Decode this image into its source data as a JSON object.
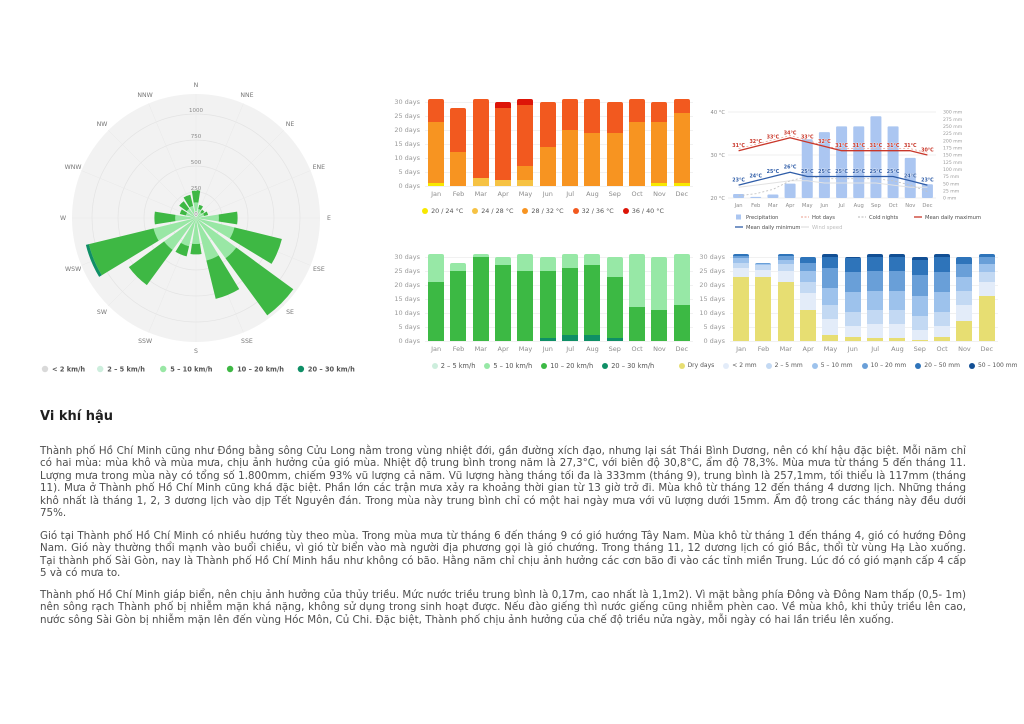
{
  "page": {
    "heading": "Vi khí hậu",
    "paragraphs": {
      "p1": "Thành phố Hồ Chí Minh cũng như Đồng bằng sông Cửu Long nằm trong vùng nhiệt đới, gần đường xích đạo, nhưng lại sát Thái Bình Dương, nên có khí hậu đặc biệt. Mỗi năm chỉ có hai mùa: mùa khô và mùa mưa, chịu ảnh hưởng của gió mùa. Nhiệt độ trung bình trong năm là 27,3°C, với biên độ 30,8°C, ẩm độ 78,3%. Mùa mưa từ tháng 5 đến tháng 11. Lượng mưa trong mùa này có tổng số 1.800mm, chiếm 93% vũ lượng cả năm. Vũ lượng hàng tháng tối đa là 333mm (tháng 9), trung bình là 257,1mm, tối thiểu là 117mm (tháng 11). Mưa ở Thành phố Hồ Chí Minh cũng khá đặc biệt. Phần lớn các trận mưa xảy ra khoảng thời gian từ 13 giờ trở đi. Mùa khô từ tháng 12 đến tháng 4 dương lịch. Những tháng khô nhất là tháng 1, 2, 3 dương lịch vào dịp Tết Nguyên đán. Trong mùa này trung bình chỉ có một hai ngày mưa với vũ lượng dưới 15mm. Ẩm độ trong các tháng này đều dưới 75%.",
      "p2": "Gió tại Thành phố Hồ Chí Minh có nhiều hướng tùy theo mùa. Trong mùa mưa từ tháng 6 đến tháng 9 có gió hướng Tây Nam. Mùa khô từ tháng 1 đến tháng 4, gió có hướng Đông Nam. Gió này thường thổi mạnh vào buổi chiều, vì gió từ biển vào mà người địa phương gọi là gió chướng. Trong tháng 11, 12 dương lịch có gió Bắc, thổi từ vùng Hạ Lào xuống. Tại thành phố Sài Gòn, nay là Thành phố Hồ Chí Minh hầu như không có bão. Hằng năm chỉ chịu ảnh hưởng các cơn bão đi vào các tỉnh miền Trung. Lúc đó có gió mạnh cấp 4 cấp 5 và có mưa to.",
      "p3": "Thành phố Hồ Chí Minh giáp biển, nên chịu ảnh hưởng của thủy triều. Mức nước triều trung bình là 0,17m, cao nhất là 1,1m2). Vì mặt bằng phía Đông và Đông Nam thấp (0,5- 1m) nên sông rạch Thành phố bị nhiễm mặn khá nặng, không sử dụng trong sinh hoạt được. Nếu đào giếng thì nước giếng cũng nhiễm phèn cao. Về mùa khô, khi thủy triều lên cao, nước sông Sài Gòn bị nhiễm mặn lên đến vùng Hóc Môn, Củ Chi. Đặc biệt, Thành phố chịu ảnh hưởng của chế độ triều nửa ngày, mỗi ngày có hai lần triều lên xuống."
    }
  },
  "chart_data": [
    {
      "id": "wind-rose",
      "type": "polar-bar",
      "directions": [
        "N",
        "NNE",
        "NE",
        "ENE",
        "E",
        "ESE",
        "SE",
        "SSE",
        "S",
        "SSW",
        "SW",
        "WSW",
        "W",
        "WNW",
        "NW",
        "NNW"
      ],
      "ring_ticks": [
        0,
        250,
        500,
        750,
        1000
      ],
      "series": [
        {
          "name": "5 – 10 km/h",
          "color": "#99e7a5",
          "values": [
            150,
            90,
            70,
            80,
            220,
            380,
            480,
            420,
            250,
            280,
            380,
            420,
            200,
            100,
            110,
            120
          ]
        },
        {
          "name": "10 – 20 km/h",
          "color": "#3eb844",
          "values": [
            130,
            40,
            30,
            40,
            180,
            470,
            680,
            380,
            100,
            100,
            420,
            640,
            200,
            60,
            90,
            110
          ]
        },
        {
          "name": "20 – 30 km/h",
          "color": "#0f8f66",
          "values": [
            0,
            0,
            0,
            0,
            0,
            0,
            0,
            0,
            0,
            0,
            0,
            30,
            0,
            0,
            0,
            0
          ]
        }
      ],
      "legend": [
        {
          "label": "< 2 km/h",
          "color": "#d9d9d9"
        },
        {
          "label": "2 – 5 km/h",
          "color": "#cdeedd"
        },
        {
          "label": "5 – 10 km/h",
          "color": "#99e7a5"
        },
        {
          "label": "10 – 20 km/h",
          "color": "#3eb844"
        },
        {
          "label": "20 – 30 km/h",
          "color": "#0f8f66"
        }
      ]
    },
    {
      "id": "temp-days",
      "type": "bar",
      "stacked": true,
      "ymax": 30,
      "ytick_step": 5,
      "ytick_suffix": " days",
      "categories": [
        "Jan",
        "Feb",
        "Mar",
        "Apr",
        "May",
        "Jun",
        "Jul",
        "Aug",
        "Sep",
        "Oct",
        "Nov",
        "Dec"
      ],
      "series": [
        {
          "name": "20 / 24 °C",
          "color": "#f7e800",
          "values": [
            1,
            0,
            0,
            0,
            0,
            0,
            0,
            0,
            0,
            0,
            1,
            1
          ]
        },
        {
          "name": "24 / 28 °C",
          "color": "#f6c243",
          "values": [
            0,
            0,
            3,
            2,
            2,
            0,
            0,
            0,
            0,
            0,
            0,
            0
          ]
        },
        {
          "name": "28 / 32 °C",
          "color": "#f79421",
          "values": [
            22,
            12,
            0,
            0,
            5,
            14,
            20,
            19,
            19,
            23,
            22,
            25
          ]
        },
        {
          "name": "32 / 36 °C",
          "color": "#f2591f",
          "values": [
            8,
            16,
            28,
            26,
            22,
            16,
            11,
            12,
            11,
            8,
            7,
            5
          ]
        },
        {
          "name": "36 / 40 °C",
          "color": "#dd1508",
          "values": [
            0,
            0,
            0,
            2,
            2,
            0,
            0,
            0,
            0,
            0,
            0,
            0
          ]
        }
      ],
      "legend": [
        {
          "label": "20 / 24 °C",
          "color": "#f7e800"
        },
        {
          "label": "24 / 28 °C",
          "color": "#f6c243"
        },
        {
          "label": "28 / 32 °C",
          "color": "#f79421"
        },
        {
          "label": "32 / 36 °C",
          "color": "#f2591f"
        },
        {
          "label": "36 / 40 °C",
          "color": "#dd1508"
        }
      ]
    },
    {
      "id": "climate",
      "type": "combo",
      "categories": [
        "Jan",
        "Feb",
        "Mar",
        "Apr",
        "May",
        "Jun",
        "Jul",
        "Aug",
        "Sep",
        "Oct",
        "Nov",
        "Dec"
      ],
      "temp_axis": {
        "min": 20,
        "max": 40,
        "ticks": [
          "20 °C",
          "30 °C",
          "40 °C"
        ],
        "tick_values": [
          20,
          30,
          40
        ]
      },
      "precip_axis": {
        "max": 300,
        "ticks_mm": [
          0,
          25,
          50,
          75,
          100,
          125,
          150,
          175,
          200,
          225,
          250,
          275,
          300
        ],
        "suffix": " mm"
      },
      "precipitation_mm": [
        14,
        4,
        12,
        50,
        205,
        230,
        250,
        250,
        285,
        250,
        140,
        48
      ],
      "mean_daily_maximum_c": [
        31,
        32,
        33,
        34,
        33,
        32,
        31,
        31,
        31,
        31,
        31,
        30
      ],
      "mean_daily_minimum_c": [
        23,
        24,
        25,
        26,
        25,
        25,
        25,
        25,
        25,
        25,
        24,
        23
      ],
      "hot_days_line": [
        31.5,
        32.5,
        33.5,
        34.5,
        33.5,
        32,
        31.5,
        31.5,
        31.5,
        31.5,
        31.5,
        30.5
      ],
      "cold_nights_line": [
        20.5,
        21,
        22,
        24,
        25,
        24.5,
        24.5,
        24.5,
        24.5,
        24,
        23,
        21.5
      ],
      "wind_speed_line": [
        22.5,
        23,
        23.5,
        24,
        24,
        23.5,
        23.5,
        23.5,
        23.5,
        23,
        22.5,
        22.5
      ],
      "colors": {
        "bar": "#abc6f1",
        "max": "#c9372a",
        "min": "#2f5da8",
        "hot_days": "#eeb0a4",
        "cold_nights": "#c4c4c4",
        "wind_speed": "#e2e2e2"
      },
      "legend": [
        {
          "label": "Precipitation",
          "swatch": "bar",
          "color": "#abc6f1"
        },
        {
          "label": "Hot days",
          "swatch": "dash",
          "color": "#eeb0a4"
        },
        {
          "label": "Cold nights",
          "swatch": "dash",
          "color": "#c4c4c4"
        },
        {
          "label": "Mean daily maximum",
          "swatch": "line",
          "color": "#c9372a"
        },
        {
          "label": "Mean daily minimum",
          "swatch": "line",
          "color": "#2f5da8"
        },
        {
          "label": "Wind speed",
          "swatch": "line",
          "color": "#e2e2e2"
        }
      ]
    },
    {
      "id": "wind-days",
      "type": "bar",
      "stacked": true,
      "ymax": 30,
      "ytick_step": 5,
      "ytick_suffix": " days",
      "categories": [
        "Jan",
        "Feb",
        "Mar",
        "Apr",
        "May",
        "Jun",
        "Jul",
        "Aug",
        "Sep",
        "Oct",
        "Nov",
        "Dec"
      ],
      "series": [
        {
          "name": "20 – 30 km/h",
          "color": "#0f8f66",
          "values": [
            0,
            0,
            0,
            0,
            0,
            1,
            2,
            2,
            1,
            0,
            0,
            0
          ]
        },
        {
          "name": "10 – 20 km/h",
          "color": "#3cb944",
          "values": [
            21,
            25,
            30,
            27,
            25,
            24,
            24,
            25,
            22,
            12,
            11,
            13
          ]
        },
        {
          "name": "5 – 10 km/h",
          "color": "#97e8a6",
          "values": [
            10,
            3,
            1,
            3,
            6,
            5,
            5,
            4,
            7,
            19,
            19,
            18
          ]
        },
        {
          "name": "2 – 5 km/h",
          "color": "#cdeedd",
          "values": [
            0,
            0,
            0,
            0,
            0,
            0,
            0,
            0,
            0,
            0,
            0,
            0
          ]
        }
      ],
      "legend": [
        {
          "label": "2 – 5 km/h",
          "color": "#cdeedd"
        },
        {
          "label": "5 – 10 km/h",
          "color": "#97e8a6"
        },
        {
          "label": "10 – 20 km/h",
          "color": "#3cb944"
        },
        {
          "label": "20 – 30 km/h",
          "color": "#0f8f66"
        }
      ]
    },
    {
      "id": "rain-days",
      "type": "bar",
      "stacked": true,
      "ymax": 30,
      "ytick_step": 5,
      "ytick_suffix": " days",
      "categories": [
        "Jan",
        "Feb",
        "Mar",
        "Apr",
        "May",
        "Jun",
        "Jul",
        "Aug",
        "Sep",
        "Oct",
        "Nov",
        "Dec"
      ],
      "series": [
        {
          "name": "Dry days",
          "color": "#e7de72",
          "values": [
            23,
            23,
            21,
            11,
            2,
            1.5,
            1,
            1,
            0.5,
            1.5,
            7,
            16
          ]
        },
        {
          "name": "< 2 mm",
          "color": "#e3ecf9",
          "values": [
            3,
            2.5,
            4,
            6,
            6,
            4,
            5,
            5,
            3.5,
            4,
            6,
            5
          ]
        },
        {
          "name": "2 – 5 mm",
          "color": "#c3d9f3",
          "values": [
            2,
            1.5,
            2.5,
            4,
            5,
            5,
            5,
            5,
            5,
            5,
            5,
            3.5
          ]
        },
        {
          "name": "5 – 10 mm",
          "color": "#9dc2ec",
          "values": [
            1.5,
            0.5,
            1.5,
            4,
            6,
            7,
            7,
            7,
            7,
            7,
            5,
            3
          ]
        },
        {
          "name": "10 – 20 mm",
          "color": "#699fd8",
          "values": [
            1,
            0.5,
            1.5,
            3,
            7,
            7,
            7,
            7,
            7.5,
            7,
            4.5,
            2.5
          ]
        },
        {
          "name": "20 – 50 mm",
          "color": "#2e74ba",
          "values": [
            0.5,
            0,
            0.5,
            2,
            4,
            5,
            5,
            5,
            5.5,
            5.5,
            2.5,
            1
          ]
        },
        {
          "name": "50 – 100 mm",
          "color": "#124f94",
          "values": [
            0,
            0,
            0,
            0,
            1,
            0.5,
            1,
            1,
            1,
            1,
            0,
            0
          ]
        }
      ],
      "legend": [
        {
          "label": "Dry days",
          "color": "#e7de72"
        },
        {
          "label": "< 2 mm",
          "color": "#e3ecf9"
        },
        {
          "label": "2 – 5 mm",
          "color": "#c3d9f3"
        },
        {
          "label": "5 – 10 mm",
          "color": "#9dc2ec"
        },
        {
          "label": "10 – 20 mm",
          "color": "#699fd8"
        },
        {
          "label": "20 – 50 mm",
          "color": "#2e74ba"
        },
        {
          "label": "50 – 100 mm",
          "color": "#124f94"
        }
      ]
    }
  ]
}
